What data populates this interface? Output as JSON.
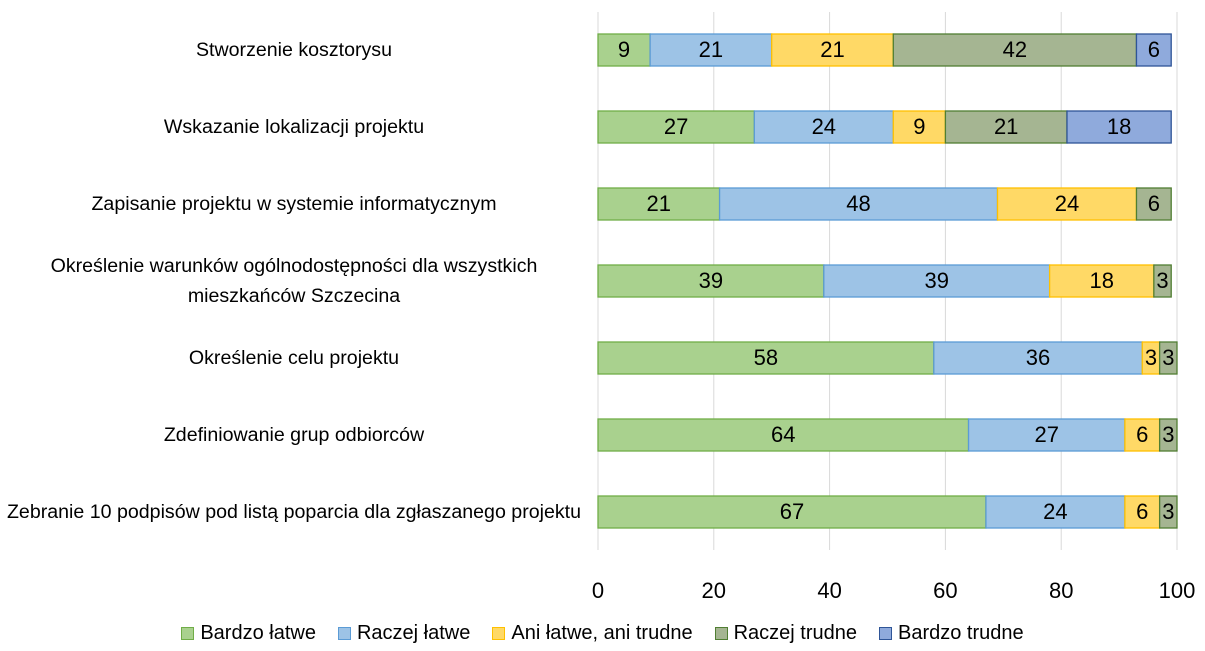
{
  "chart_data": {
    "type": "stacked_barh",
    "categories": [
      "Stworzenie kosztorysu",
      "Wskazanie lokalizacji projektu",
      "Zapisanie projektu w systemie informatycznym",
      "Określenie warunków ogólnodostępności dla wszystkich mieszkańców Szczecina",
      "Określenie celu projektu",
      "Zdefiniowanie grup odbiorców",
      "Zebranie 10 podpisów pod listą poparcia dla zgłaszanego projektu"
    ],
    "series": [
      {
        "name": "Bardzo łatwe",
        "color": "#a9d18e",
        "edge": "#70ad47",
        "values": [
          9,
          27,
          21,
          39,
          58,
          64,
          67
        ]
      },
      {
        "name": "Raczej łatwe",
        "color": "#9dc3e6",
        "edge": "#5b9bd5",
        "values": [
          21,
          24,
          48,
          39,
          36,
          27,
          24
        ]
      },
      {
        "name": "Ani łatwe, ani trudne",
        "color": "#ffd966",
        "edge": "#ffc000",
        "values": [
          21,
          9,
          24,
          18,
          3,
          6,
          6
        ]
      },
      {
        "name": "Raczej trudne",
        "color": "#a5b592",
        "edge": "#507e32",
        "values": [
          42,
          21,
          6,
          3,
          3,
          3,
          3
        ]
      },
      {
        "name": "Bardzo trudne",
        "color": "#8faadc",
        "edge": "#2f5597",
        "values": [
          6,
          18,
          null,
          null,
          null,
          null,
          null
        ]
      }
    ],
    "xlim": [
      0,
      100
    ],
    "xticks": [
      0,
      20,
      40,
      60,
      80,
      100
    ],
    "grid": true,
    "legend": "bottom"
  }
}
